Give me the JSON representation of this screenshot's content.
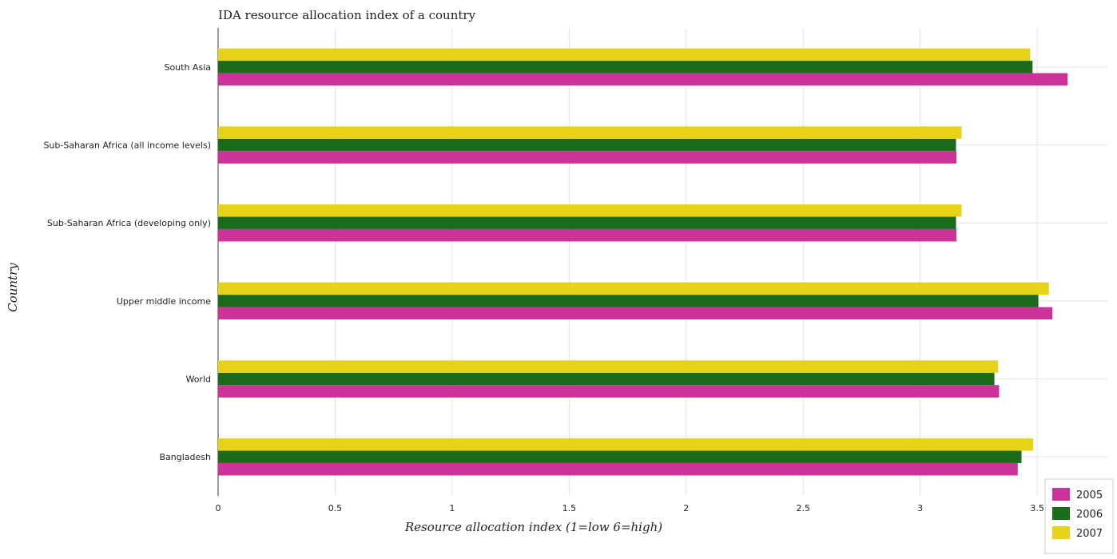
{
  "chart_data": {
    "type": "bar",
    "orientation": "horizontal",
    "title": "IDA resource allocation index of a country",
    "xlabel": "Resource allocation index (1=low 6=high)",
    "ylabel": "Country",
    "xlim": [
      0,
      3.8
    ],
    "x_ticks": [
      "0",
      "0.5",
      "1",
      "1.5",
      "2",
      "2.5",
      "3",
      "3.5"
    ],
    "x_tick_values": [
      0,
      0.5,
      1,
      1.5,
      2,
      2.5,
      3,
      3.5
    ],
    "grid": true,
    "legend_position": "bottom-right",
    "categories": [
      "South Asia",
      "Sub-Saharan Africa (all income levels)",
      "Sub-Saharan Africa (developing only)",
      "Upper middle income",
      "World",
      "Bangladesh"
    ],
    "series": [
      {
        "name": "2005",
        "color": "#cc3399",
        "values": [
          3.63,
          3.155,
          3.155,
          3.565,
          3.337,
          3.417
        ]
      },
      {
        "name": "2006",
        "color": "#1a6b1a",
        "values": [
          3.48,
          3.153,
          3.153,
          3.505,
          3.317,
          3.433
        ]
      },
      {
        "name": "2007",
        "color": "#e6d317",
        "values": [
          3.47,
          3.177,
          3.177,
          3.55,
          3.333,
          3.483
        ]
      }
    ]
  }
}
